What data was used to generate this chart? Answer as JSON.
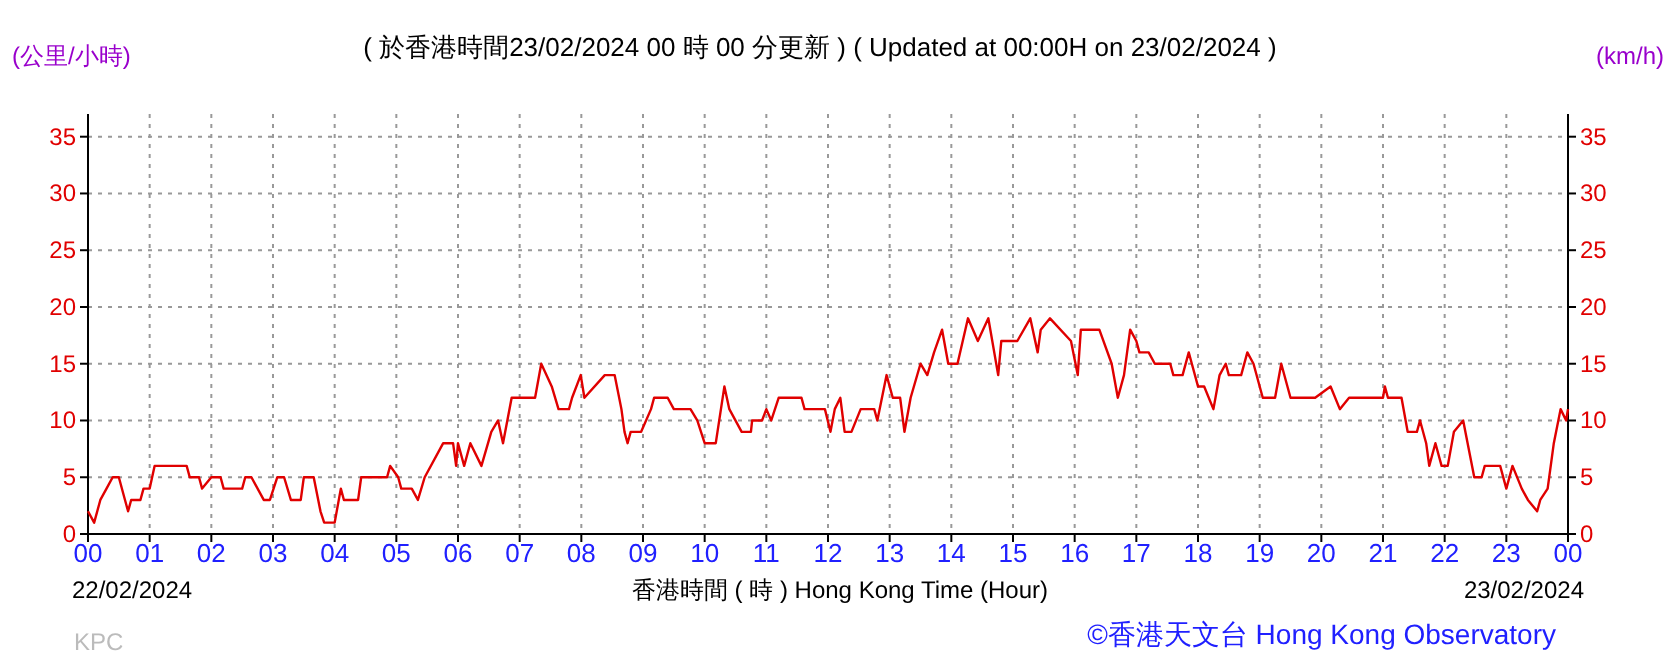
{
  "chart_data": {
    "type": "line",
    "title": "( 於香港時間23/02/2024 00 時 00 分更新 ) ( Updated at 00:00H on 23/02/2024 )",
    "xlabel": "香港時間 ( 時 ) Hong Kong Time (Hour)",
    "ylabel": "(公里/小時)",
    "y2label": "(km/h)",
    "annotations": [
      "22/02/2024",
      "23/02/2024",
      "KPC",
      "©香港天文台 Hong Kong Observatory"
    ],
    "xlim": [
      0,
      24
    ],
    "xticks": [
      {
        "value": 0,
        "label": "00"
      },
      {
        "value": 1,
        "label": "01"
      },
      {
        "value": 2,
        "label": "02"
      },
      {
        "value": 3,
        "label": "03"
      },
      {
        "value": 4,
        "label": "04"
      },
      {
        "value": 5,
        "label": "05"
      },
      {
        "value": 6,
        "label": "06"
      },
      {
        "value": 7,
        "label": "07"
      },
      {
        "value": 8,
        "label": "08"
      },
      {
        "value": 9,
        "label": "09"
      },
      {
        "value": 10,
        "label": "10"
      },
      {
        "value": 11,
        "label": "11"
      },
      {
        "value": 12,
        "label": "12"
      },
      {
        "value": 13,
        "label": "13"
      },
      {
        "value": 14,
        "label": "14"
      },
      {
        "value": 15,
        "label": "15"
      },
      {
        "value": 16,
        "label": "16"
      },
      {
        "value": 17,
        "label": "17"
      },
      {
        "value": 18,
        "label": "18"
      },
      {
        "value": 19,
        "label": "19"
      },
      {
        "value": 20,
        "label": "20"
      },
      {
        "value": 21,
        "label": "21"
      },
      {
        "value": 22,
        "label": "22"
      },
      {
        "value": 23,
        "label": "23"
      },
      {
        "value": 24,
        "label": "00"
      }
    ],
    "ylim": [
      0,
      37
    ],
    "yticks": [
      0,
      5,
      10,
      15,
      20,
      25,
      30,
      35
    ],
    "y2lim": [
      0,
      37
    ],
    "y2ticks": [
      0,
      5,
      10,
      15,
      20,
      25,
      30,
      35
    ],
    "grid": true,
    "marker": "none",
    "line_style": "solid",
    "series": [
      {
        "color": "#e00000",
        "x": [
          0,
          0.1,
          0.2,
          0.3,
          0.4,
          0.5,
          0.6,
          0.65,
          0.7,
          0.85,
          0.9,
          1.0,
          1.08,
          1.6,
          1.65,
          1.8,
          1.85,
          2.0,
          2.15,
          2.2,
          2.5,
          2.55,
          2.65,
          2.85,
          2.95,
          3.07,
          3.18,
          3.29,
          3.45,
          3.5,
          3.66,
          3.77,
          3.83,
          4.0,
          4.1,
          4.15,
          4.38,
          4.43,
          4.85,
          4.9,
          5.03,
          5.08,
          5.25,
          5.35,
          5.46,
          5.76,
          5.92,
          5.97,
          6.0,
          6.1,
          6.2,
          6.38,
          6.54,
          6.65,
          6.73,
          6.87,
          7.25,
          7.35,
          7.52,
          7.63,
          7.8,
          7.85,
          7.99,
          8.05,
          8.38,
          8.54,
          8.65,
          8.7,
          8.75,
          8.8,
          8.97,
          9.13,
          9.18,
          9.4,
          9.5,
          9.77,
          9.88,
          10.0,
          10.18,
          10.32,
          10.4,
          10.6,
          10.75,
          10.77,
          10.93,
          11.0,
          11.08,
          11.2,
          11.57,
          11.62,
          11.95,
          12.04,
          12.11,
          12.2,
          12.27,
          12.38,
          12.53,
          12.75,
          12.8,
          12.95,
          13.05,
          13.17,
          13.24,
          13.34,
          13.5,
          13.61,
          13.72,
          13.85,
          13.95,
          14.1,
          14.27,
          14.43,
          14.6,
          14.76,
          14.81,
          15.07,
          15.28,
          15.4,
          15.45,
          15.6,
          15.94,
          16.05,
          16.1,
          16.4,
          16.6,
          16.7,
          16.8,
          16.9,
          17.0,
          17.05,
          17.2,
          17.3,
          17.55,
          17.6,
          17.75,
          17.85,
          17.9,
          18.0,
          18.1,
          18.25,
          18.35,
          18.45,
          18.5,
          18.7,
          18.8,
          18.9,
          19.05,
          19.25,
          19.35,
          19.5,
          19.9,
          20.15,
          20.3,
          20.45,
          21.0,
          21.03,
          21.08,
          21.3,
          21.4,
          21.55,
          21.6,
          21.7,
          21.75,
          21.85,
          21.95,
          22.05,
          22.15,
          22.3,
          22.48,
          22.6,
          22.65,
          22.9,
          23.0,
          23.1,
          23.25,
          23.35,
          23.5,
          23.55,
          23.67,
          23.77,
          23.88,
          23.97,
          24.0
        ],
        "values": [
          2,
          1,
          3,
          4,
          5,
          5,
          3,
          2,
          3,
          3,
          4,
          4,
          6,
          6,
          5,
          5,
          4,
          5,
          5,
          4,
          4,
          5,
          5,
          3,
          3,
          5,
          5,
          3,
          3,
          5,
          5,
          2,
          1,
          1,
          4,
          3,
          3,
          5,
          5,
          6,
          5,
          4,
          4,
          3,
          5,
          8,
          8,
          6,
          8,
          6,
          8,
          6,
          9,
          10,
          8,
          12,
          12,
          15,
          13,
          11,
          11,
          12,
          14,
          12,
          14,
          14,
          11,
          9,
          8,
          9,
          9,
          11,
          12,
          12,
          11,
          11,
          10,
          8,
          8,
          13,
          11,
          9,
          9,
          10,
          10,
          11,
          10,
          12,
          12,
          11,
          11,
          9,
          11,
          12,
          9,
          9,
          11,
          11,
          10,
          14,
          12,
          12,
          9,
          12,
          15,
          14,
          16,
          18,
          15,
          15,
          19,
          17,
          19,
          14,
          17,
          17,
          19,
          16,
          18,
          19,
          17,
          14,
          18,
          18,
          15,
          12,
          14,
          18,
          17,
          16,
          16,
          15,
          15,
          14,
          14,
          16,
          15,
          13,
          13,
          11,
          14,
          15,
          14,
          14,
          16,
          15,
          12,
          12,
          15,
          12,
          12,
          13,
          11,
          12,
          12,
          13,
          12,
          12,
          9,
          9,
          10,
          8,
          6,
          8,
          6,
          6,
          9,
          10,
          5,
          5,
          6,
          6,
          4,
          6,
          4,
          3,
          2,
          3,
          4,
          8,
          11,
          10,
          11
        ]
      }
    ]
  }
}
